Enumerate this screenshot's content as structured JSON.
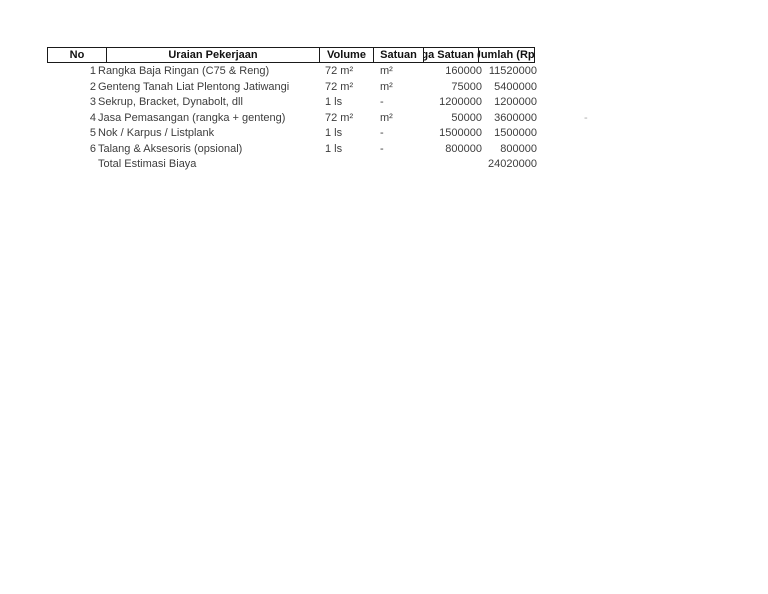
{
  "table": {
    "columns": [
      {
        "label": "No"
      },
      {
        "label": "Uraian Pekerjaan"
      },
      {
        "label": "Volume"
      },
      {
        "label": "Satuan"
      },
      {
        "label": "ga Satuan ("
      },
      {
        "label": "Jumlah (Rp)"
      }
    ],
    "rows": [
      {
        "no": "1",
        "uraian": "Rangka Baja Ringan (C75 & Reng)",
        "volume": "72 m²",
        "satuan": "m²",
        "harga": "160000",
        "jumlah": "11520000"
      },
      {
        "no": "2",
        "uraian": "Genteng Tanah Liat Plentong Jatiwangi",
        "volume": "72 m²",
        "satuan": "m²",
        "harga": "75000",
        "jumlah": "5400000"
      },
      {
        "no": "3",
        "uraian": "Sekrup, Bracket, Dynabolt, dll",
        "volume": "1 ls",
        "satuan": "-",
        "harga": "1200000",
        "jumlah": "1200000"
      },
      {
        "no": "4",
        "uraian": "Jasa Pemasangan (rangka + genteng)",
        "volume": "72 m²",
        "satuan": "m²",
        "harga": "50000",
        "jumlah": "3600000"
      },
      {
        "no": "5",
        "uraian": "Nok / Karpus / Listplank",
        "volume": "1 ls",
        "satuan": "-",
        "harga": "1500000",
        "jumlah": "1500000"
      },
      {
        "no": "6",
        "uraian": "Talang & Aksesoris (opsional)",
        "volume": "1 ls",
        "satuan": "-",
        "harga": "800000",
        "jumlah": "800000"
      }
    ],
    "total": {
      "label": "Total Estimasi Biaya",
      "value": "24020000"
    },
    "stray_mark": "-"
  },
  "colors": {
    "background": "#ffffff",
    "border": "#1a1a1a",
    "header_text": "#111111",
    "body_text": "#3d3d3d",
    "stray_mark": "#a8a8a8"
  }
}
